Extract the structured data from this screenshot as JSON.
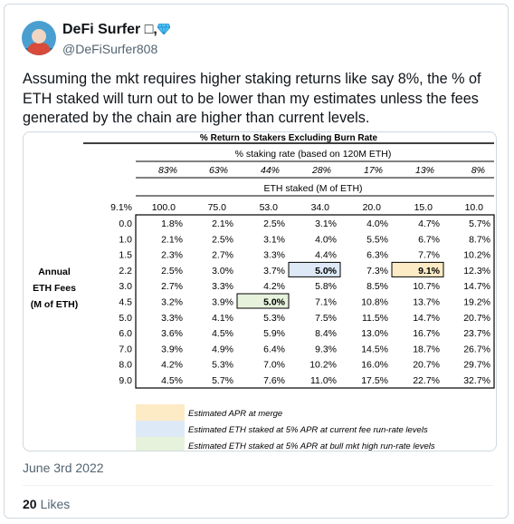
{
  "author": {
    "name": "DeFi Surfer",
    "name_symbol": "□",
    "badge": "gem",
    "handle": "@DeFiSurfer808",
    "avatar_icon": "surfer-avatar"
  },
  "tweet": {
    "text": "Assuming the mkt requires higher staking returns like say 8%, the % of ETH staked will turn out to be lower than my estimates unless the fees generated by the chain are higher than current levels.",
    "date": "June 3rd 2022",
    "likes_count": "20",
    "likes_label": "Likes"
  },
  "table": {
    "title": "% Return to Stakers Excluding Burn Rate",
    "staking_rate_header": "% staking rate (based on 120M ETH)",
    "staking_rates": [
      "83%",
      "63%",
      "44%",
      "28%",
      "17%",
      "13%",
      "8%"
    ],
    "eth_staked_header": "ETH staked (M of ETH)",
    "corner_value": "9.1%",
    "eth_staked": [
      "100.0",
      "75.0",
      "53.0",
      "34.0",
      "20.0",
      "15.0",
      "10.0"
    ],
    "row_label": [
      "Annual",
      "ETH Fees",
      "(M of ETH)"
    ],
    "fees": [
      "0.0",
      "1.0",
      "1.5",
      "2.2",
      "3.0",
      "4.5",
      "5.0",
      "6.0",
      "7.0",
      "8.0",
      "9.0"
    ],
    "rows": [
      [
        "1.8%",
        "2.1%",
        "2.5%",
        "3.1%",
        "4.0%",
        "4.7%",
        "5.7%"
      ],
      [
        "2.1%",
        "2.5%",
        "3.1%",
        "4.0%",
        "5.5%",
        "6.7%",
        "8.7%"
      ],
      [
        "2.3%",
        "2.7%",
        "3.3%",
        "4.4%",
        "6.3%",
        "7.7%",
        "10.2%"
      ],
      [
        "2.5%",
        "3.0%",
        "3.7%",
        "5.0%",
        "7.3%",
        "9.1%",
        "12.3%"
      ],
      [
        "2.7%",
        "3.3%",
        "4.2%",
        "5.8%",
        "8.5%",
        "10.7%",
        "14.7%"
      ],
      [
        "3.2%",
        "3.9%",
        "5.0%",
        "7.1%",
        "10.8%",
        "13.7%",
        "19.2%"
      ],
      [
        "3.3%",
        "4.1%",
        "5.3%",
        "7.5%",
        "11.5%",
        "14.7%",
        "20.7%"
      ],
      [
        "3.6%",
        "4.5%",
        "5.9%",
        "8.4%",
        "13.0%",
        "16.7%",
        "23.7%"
      ],
      [
        "3.9%",
        "4.9%",
        "6.4%",
        "9.3%",
        "14.5%",
        "18.7%",
        "26.7%"
      ],
      [
        "4.2%",
        "5.3%",
        "7.0%",
        "10.2%",
        "16.0%",
        "20.7%",
        "29.7%"
      ],
      [
        "4.5%",
        "5.7%",
        "7.6%",
        "11.0%",
        "17.5%",
        "22.7%",
        "32.7%"
      ]
    ],
    "highlights": [
      {
        "row": 3,
        "col": 3,
        "color": "#dde9f6",
        "border": "#000000"
      },
      {
        "row": 3,
        "col": 5,
        "color": "#fdebc6",
        "border": "#000000"
      },
      {
        "row": 5,
        "col": 2,
        "color": "#e6f2dc",
        "border": "#000000"
      }
    ],
    "legend": [
      {
        "label": "Estimated APR at merge",
        "color": "#fdebc6"
      },
      {
        "label": "Estimated ETH staked at 5% APR at current fee run-rate levels",
        "color": "#dde9f6"
      },
      {
        "label": "Estimated ETH staked at 5% APR at bull mkt high run-rate levels",
        "color": "#e6f2dc"
      }
    ]
  }
}
